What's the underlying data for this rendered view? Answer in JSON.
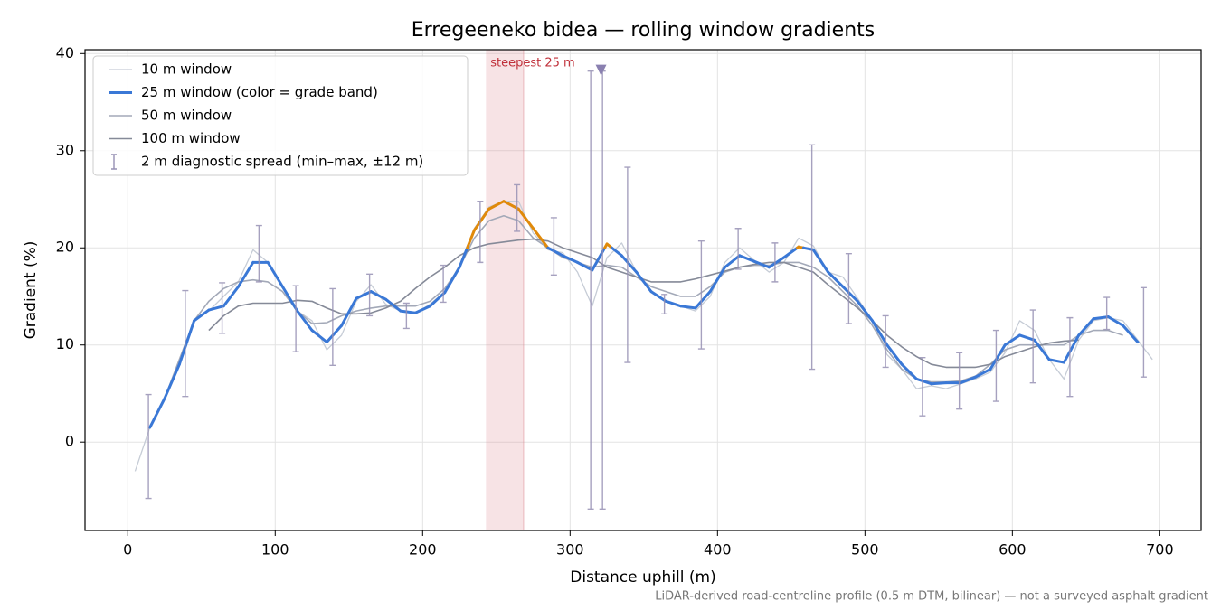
{
  "chart_data": {
    "type": "line",
    "title": "Erregeeneko bidea — rolling window gradients",
    "xlabel": "Distance uphill (m)",
    "ylabel": "Gradient (%)",
    "footnote": "LiDAR-derived road-centreline profile (0.5 m DTM, bilinear) — not a surveyed asphalt gradient",
    "xlim": [
      -29,
      728
    ],
    "ylim": [
      -9.1,
      40.4
    ],
    "xticks": [
      0,
      100,
      200,
      300,
      400,
      500,
      600,
      700
    ],
    "yticks": [
      0,
      10,
      20,
      30,
      40
    ],
    "grid": true,
    "legend": "upper left",
    "x": [
      5,
      15,
      25,
      35,
      45,
      55,
      65,
      75,
      85,
      95,
      105,
      115,
      125,
      135,
      145,
      155,
      165,
      175,
      185,
      195,
      205,
      215,
      225,
      235,
      245,
      255,
      265,
      275,
      285,
      295,
      305,
      315,
      325,
      335,
      345,
      355,
      365,
      375,
      385,
      395,
      405,
      415,
      425,
      435,
      445,
      455,
      465,
      475,
      485,
      495,
      505,
      515,
      525,
      535,
      545,
      555,
      565,
      575,
      585,
      595,
      605,
      615,
      625,
      635,
      645,
      655,
      665,
      675,
      685,
      695
    ],
    "series": [
      {
        "name": "10 m window",
        "color": "#c6ccd6",
        "width": 1.3,
        "values": [
          -3,
          1.5,
          4.5,
          8,
          12.5,
          13.5,
          15,
          16.5,
          19.8,
          18.5,
          16,
          13.5,
          12.5,
          9.5,
          11,
          14.5,
          16.2,
          14.2,
          13.5,
          13.2,
          14.2,
          15.5,
          18.2,
          22,
          24.2,
          24.8,
          24.8,
          21.5,
          19.8,
          19.5,
          17.5,
          14,
          19,
          20.5,
          17.5,
          15.5,
          14.5,
          14,
          13.5,
          15,
          18.5,
          20,
          18.7,
          17.5,
          18.5,
          21,
          20.2,
          17.5,
          17,
          14.8,
          12.5,
          9,
          7.5,
          5.5,
          5.8,
          5.5,
          6,
          6.5,
          7.2,
          9.2,
          12.5,
          11.5,
          8.5,
          6.5,
          10.5,
          12.5,
          12.8,
          12.5,
          10.5,
          8.5
        ]
      },
      {
        "name": "25 m window (color = grade band)",
        "color": "#3a78d6",
        "width": 3,
        "grade_bands": [
          {
            "min": 20,
            "color": "#e08a0b"
          }
        ],
        "values": [
          null,
          1.5,
          4.5,
          8,
          12.5,
          13.6,
          14,
          16,
          18.5,
          18.5,
          16,
          13.5,
          11.5,
          10.3,
          12,
          14.8,
          15.5,
          14.7,
          13.5,
          13.3,
          14,
          15.4,
          18,
          21.8,
          24,
          24.8,
          24,
          22,
          20,
          19.2,
          18.5,
          17.7,
          20.4,
          19.2,
          17.5,
          15.5,
          14.5,
          14,
          13.8,
          15.5,
          18,
          19.2,
          18.6,
          18,
          19,
          20.1,
          19.8,
          17.5,
          16,
          14.5,
          12.5,
          10,
          8,
          6.5,
          6,
          6.1,
          6.1,
          6.7,
          7.5,
          10,
          11,
          10.5,
          8.5,
          8.2,
          11,
          12.7,
          12.9,
          12,
          10.3,
          null
        ]
      },
      {
        "name": "50 m window",
        "color": "#a3a9b8",
        "width": 1.6,
        "values": [
          null,
          null,
          4.5,
          8.5,
          12.5,
          14.5,
          15.8,
          16.5,
          16.7,
          16.5,
          15.5,
          13.5,
          12.2,
          12.3,
          13,
          13.5,
          13.8,
          14,
          14,
          14,
          14.5,
          15.8,
          18,
          21,
          22.8,
          23.3,
          22.8,
          21,
          20,
          19,
          18.5,
          18,
          18.2,
          18,
          17,
          16,
          15.5,
          15,
          15,
          16,
          17.5,
          18,
          18.2,
          18.2,
          18.5,
          18.5,
          18,
          17,
          15.5,
          14,
          12,
          9.5,
          7.5,
          6.5,
          6.2,
          6.2,
          6.3,
          6.8,
          8,
          9.5,
          10,
          10,
          10,
          10,
          11,
          11.5,
          11.5,
          11,
          null,
          null
        ]
      },
      {
        "name": "100 m window",
        "color": "#858a98",
        "width": 1.6,
        "values": [
          null,
          null,
          null,
          null,
          null,
          11.5,
          13,
          14,
          14.3,
          14.3,
          14.3,
          14.6,
          14.5,
          13.8,
          13.2,
          13.2,
          13.3,
          13.8,
          14.5,
          15.8,
          17,
          18,
          19.2,
          20,
          20.4,
          20.6,
          20.8,
          20.9,
          20.7,
          20,
          19.5,
          19,
          18,
          17.5,
          17,
          16.5,
          16.5,
          16.5,
          16.8,
          17.2,
          17.6,
          18,
          18.3,
          18.5,
          18.5,
          18,
          17.5,
          16.2,
          15,
          13.8,
          12.5,
          11,
          9.8,
          8.8,
          8,
          7.7,
          7.7,
          7.7,
          8,
          8.8,
          9.3,
          9.8,
          10.2,
          10.4,
          10.5,
          null,
          null,
          null,
          null,
          null
        ]
      }
    ],
    "spread": {
      "name": "2 m diagnostic spread (min–max, ±12 m)",
      "color": "#9690b4",
      "x": [
        14,
        39,
        64,
        89,
        114,
        139,
        164,
        189,
        214,
        239,
        264,
        289,
        314,
        322,
        339,
        364,
        389,
        414,
        439,
        464,
        489,
        514,
        539,
        564,
        589,
        614,
        639,
        664,
        689
      ],
      "low": [
        -5.8,
        4.7,
        11.2,
        16.5,
        9.3,
        7.9,
        13,
        11.7,
        14.4,
        18.5,
        21.7,
        17.2,
        -6.9,
        -6.9,
        8.2,
        13.2,
        9.6,
        17.8,
        16.5,
        7.5,
        12.2,
        7.7,
        2.7,
        3.4,
        4.2,
        6.1,
        4.7,
        11.6,
        6.7
      ],
      "high": [
        4.9,
        15.6,
        16.4,
        22.3,
        16.1,
        15.8,
        17.3,
        14.3,
        18.2,
        24.8,
        26.5,
        23.1,
        38.2,
        38.2,
        28.3,
        15.2,
        20.7,
        22,
        20.5,
        30.6,
        19.4,
        13,
        8.7,
        9.2,
        11.5,
        13.6,
        12.8,
        14.9,
        15.9
      ]
    },
    "steepest": {
      "label": "steepest 25 m",
      "band": [
        243.5,
        268.5
      ],
      "band_color": "#d9808a",
      "label_color": "#c0303a",
      "marker_x": 321,
      "marker_y": 38.3,
      "marker_color": "#8a80b0"
    }
  }
}
